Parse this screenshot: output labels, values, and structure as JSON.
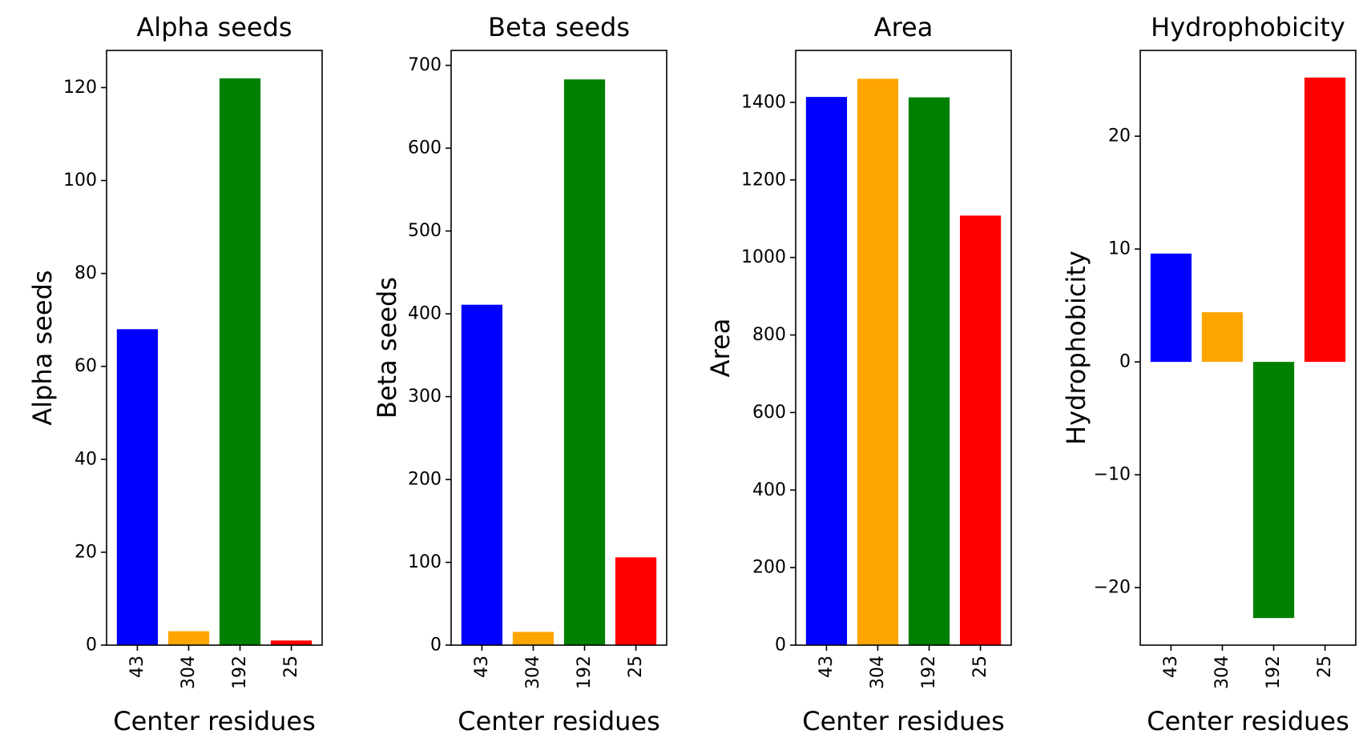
{
  "chart_data": [
    {
      "type": "bar",
      "title": "Alpha seeds",
      "xlabel": "Center residues",
      "ylabel": "Alpha seeds",
      "categories": [
        "43",
        "304",
        "192",
        "25"
      ],
      "values": [
        68,
        3,
        122,
        1
      ],
      "colors": [
        "#0000ff",
        "#ffa500",
        "#008000",
        "#ff0000"
      ],
      "ylim": [
        0,
        128
      ],
      "yticks": [
        0,
        20,
        40,
        60,
        80,
        100,
        120
      ],
      "ytick_labels": [
        "0",
        "20",
        "40",
        "60",
        "80",
        "100",
        "120"
      ],
      "grid": false,
      "legend": "none"
    },
    {
      "type": "bar",
      "title": "Beta seeds",
      "xlabel": "Center residues",
      "ylabel": "Beta seeds",
      "categories": [
        "43",
        "304",
        "192",
        "25"
      ],
      "values": [
        411,
        16,
        683,
        106
      ],
      "colors": [
        "#0000ff",
        "#ffa500",
        "#008000",
        "#ff0000"
      ],
      "ylim": [
        0,
        718
      ],
      "yticks": [
        0,
        100,
        200,
        300,
        400,
        500,
        600,
        700
      ],
      "ytick_labels": [
        "0",
        "100",
        "200",
        "300",
        "400",
        "500",
        "600",
        "700"
      ],
      "grid": false,
      "legend": "none"
    },
    {
      "type": "bar",
      "title": "Area",
      "xlabel": "Center residues",
      "ylabel": "Area",
      "categories": [
        "43",
        "304",
        "192",
        "25"
      ],
      "values": [
        1414,
        1461,
        1413,
        1108
      ],
      "colors": [
        "#0000ff",
        "#ffa500",
        "#008000",
        "#ff0000"
      ],
      "ylim": [
        0,
        1534
      ],
      "yticks": [
        0,
        200,
        400,
        600,
        800,
        1000,
        1200,
        1400
      ],
      "ytick_labels": [
        "0",
        "200",
        "400",
        "600",
        "800",
        "1000",
        "1200",
        "1400"
      ],
      "grid": false,
      "legend": "none"
    },
    {
      "type": "bar",
      "title": "Hydrophobicity",
      "xlabel": "Center residues",
      "ylabel": "Hydrophobicity",
      "categories": [
        "43",
        "304",
        "192",
        "25"
      ],
      "values": [
        9.6,
        4.4,
        -22.7,
        25.2
      ],
      "colors": [
        "#0000ff",
        "#ffa500",
        "#008000",
        "#ff0000"
      ],
      "ylim": [
        -25.1,
        27.6
      ],
      "yticks": [
        -20,
        -10,
        0,
        10,
        20
      ],
      "ytick_labels": [
        "−20",
        "−10",
        "0",
        "10",
        "20"
      ],
      "grid": false,
      "legend": "none"
    }
  ]
}
